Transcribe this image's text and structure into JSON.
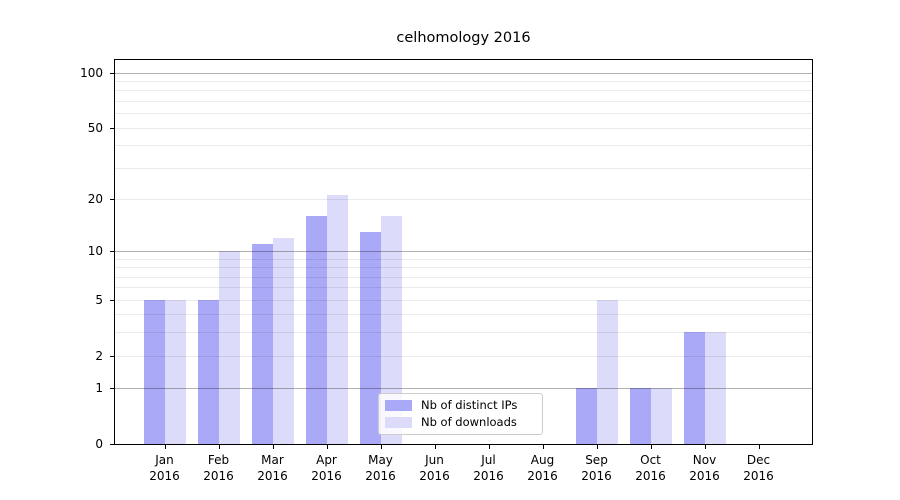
{
  "title": "celhomology 2016",
  "chart_data": {
    "type": "bar",
    "title": "celhomology 2016",
    "categories": [
      "Jan",
      "Feb",
      "Mar",
      "Apr",
      "May",
      "Jun",
      "Jul",
      "Aug",
      "Sep",
      "Oct",
      "Nov",
      "Dec"
    ],
    "category_year": "2016",
    "series": [
      {
        "name": "Nb of distinct IPs",
        "color": "#a9a9f7",
        "values": [
          5,
          5,
          11,
          16,
          13,
          0,
          0,
          0,
          1,
          1,
          3,
          0
        ]
      },
      {
        "name": "Nb of downloads",
        "color": "#dcdcfa",
        "values": [
          5,
          10,
          12,
          21,
          16,
          0,
          0,
          0,
          5,
          1,
          3,
          0
        ]
      }
    ],
    "xlabel": "",
    "ylabel": "",
    "yscale": "log1p",
    "ylim": [
      0,
      118
    ],
    "yticks": [
      0,
      1,
      2,
      5,
      10,
      20,
      50,
      100
    ],
    "major_gridlines": [
      1,
      10,
      100
    ],
    "minor_gridlines": [
      2,
      3,
      4,
      5,
      6,
      7,
      8,
      9,
      20,
      30,
      40,
      50,
      60,
      70,
      80,
      90
    ],
    "grid": true,
    "legend_position": "lower center"
  },
  "colors": {
    "bar_distinct_ips": "#a9a9f7",
    "bar_downloads": "#dcdcfa",
    "axis": "#000000",
    "legend_border": "#cccccc"
  }
}
